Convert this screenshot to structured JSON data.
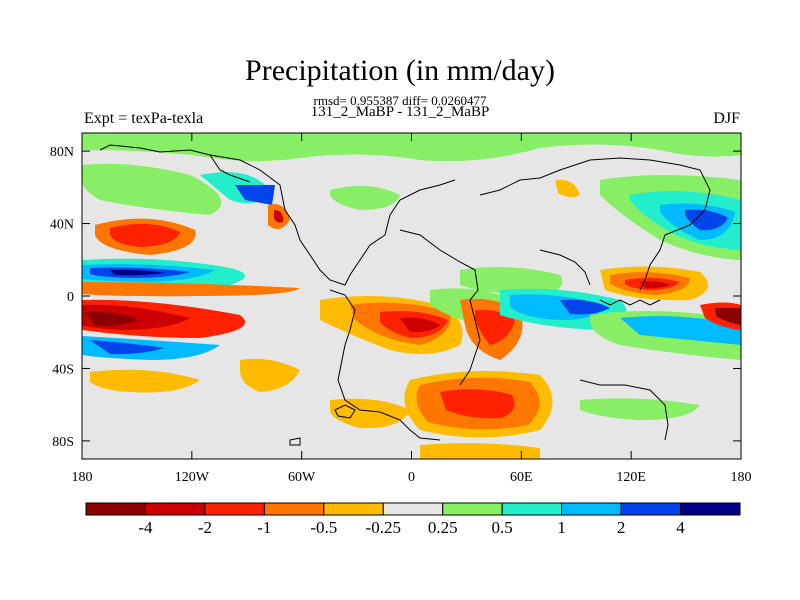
{
  "title": "Precipitation (in mm/day)",
  "stats": "rmsd= 0.955387 diff= 0.0260477",
  "comparison": "131_2_MaBP - 131_2_MaBP",
  "experiment": "Expt = texPa-texla",
  "season": "DJF",
  "map": {
    "lon_range": [
      -180,
      180
    ],
    "lat_range": [
      -90,
      90
    ],
    "lon_ticks": [
      {
        "value": -180,
        "label": "180"
      },
      {
        "value": -120,
        "label": "120W"
      },
      {
        "value": -60,
        "label": "60W"
      },
      {
        "value": 0,
        "label": "0"
      },
      {
        "value": 60,
        "label": "60E"
      },
      {
        "value": 120,
        "label": "120E"
      },
      {
        "value": 180,
        "label": "180"
      }
    ],
    "lat_ticks": [
      {
        "value": 80,
        "label": "80N"
      },
      {
        "value": 40,
        "label": "40N"
      },
      {
        "value": 0,
        "label": "0"
      },
      {
        "value": -40,
        "label": "40S"
      },
      {
        "value": -80,
        "label": "80S"
      }
    ]
  },
  "colorbar": {
    "colors": [
      "#8b0000",
      "#cc0000",
      "#ff2200",
      "#ff7700",
      "#ffbb00",
      "#e6e6e6",
      "#88ee66",
      "#22eecc",
      "#00bbff",
      "#0044ee",
      "#000088"
    ],
    "labels": [
      "-4",
      "-2",
      "-1",
      "-0.5",
      "-0.25",
      "0.25",
      "0.5",
      "1",
      "2",
      "4"
    ]
  }
}
